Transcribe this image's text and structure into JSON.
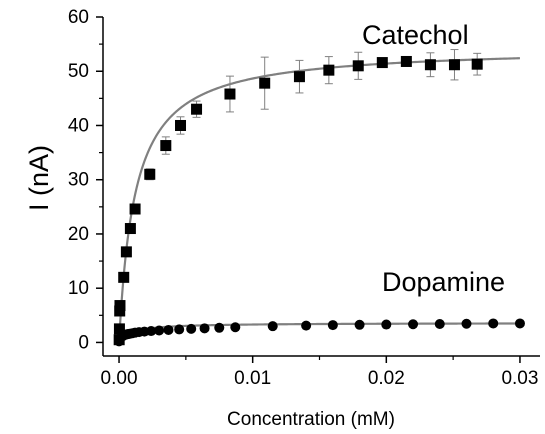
{
  "chart_data": {
    "type": "scatter",
    "xlabel": "Concentration (mM)",
    "ylabel": "I (nA)",
    "xlim": [
      -0.0012,
      0.0315
    ],
    "ylim": [
      -2.5,
      60
    ],
    "xticks": [
      "0.00",
      "0.01",
      "0.02",
      "0.03"
    ],
    "xtick_values": [
      0,
      0.01,
      0.02,
      0.03
    ],
    "yticks": [
      "0",
      "10",
      "20",
      "30",
      "40",
      "50",
      "60"
    ],
    "ytick_values": [
      0,
      10,
      20,
      30,
      40,
      50,
      60
    ],
    "grid": false,
    "legend": "none",
    "colors": {
      "points": "#000000",
      "fit": "#808080",
      "error_bar": "#808080",
      "axis": "#000000"
    },
    "series": [
      {
        "name": "Catechol",
        "marker": "square",
        "points": [
          {
            "x": 1e-05,
            "y": 0.5,
            "err": 0
          },
          {
            "x": 3e-05,
            "y": 2.5,
            "err": 0
          },
          {
            "x": 5e-05,
            "y": 5.8,
            "err": 0
          },
          {
            "x": 7e-05,
            "y": 6.8,
            "err": 0
          },
          {
            "x": 0.00035,
            "y": 12.0,
            "err": 0
          },
          {
            "x": 0.00055,
            "y": 16.7,
            "err": 0
          },
          {
            "x": 0.00085,
            "y": 21.0,
            "err": 0
          },
          {
            "x": 0.0012,
            "y": 24.6,
            "err": 0.5
          },
          {
            "x": 0.0023,
            "y": 31.0,
            "err": 1.0
          },
          {
            "x": 0.0035,
            "y": 36.3,
            "err": 1.6
          },
          {
            "x": 0.0046,
            "y": 40.0,
            "err": 1.6
          },
          {
            "x": 0.0058,
            "y": 43.0,
            "err": 1.5
          },
          {
            "x": 0.0083,
            "y": 45.8,
            "err": 3.3
          },
          {
            "x": 0.0109,
            "y": 47.8,
            "err": 4.8
          },
          {
            "x": 0.0135,
            "y": 49.0,
            "err": 3.0
          },
          {
            "x": 0.0157,
            "y": 50.2,
            "err": 2.5
          },
          {
            "x": 0.0179,
            "y": 51.0,
            "err": 2.5
          },
          {
            "x": 0.0197,
            "y": 51.6,
            "err": 0.6
          },
          {
            "x": 0.0215,
            "y": 51.8,
            "err": 0.7
          },
          {
            "x": 0.0233,
            "y": 51.2,
            "err": 2.2
          },
          {
            "x": 0.0251,
            "y": 51.2,
            "err": 2.8
          },
          {
            "x": 0.0268,
            "y": 51.3,
            "err": 2.0
          }
        ],
        "fit": {
          "model": "michaelis-menten",
          "imax": 54.5,
          "km": 0.0012
        }
      },
      {
        "name": "Dopamine",
        "marker": "circle",
        "points": [
          {
            "x": 0.0,
            "y": 0.2
          },
          {
            "x": 5e-05,
            "y": 0.5
          },
          {
            "x": 0.0001,
            "y": 0.8
          },
          {
            "x": 0.0002,
            "y": 1.1
          },
          {
            "x": 0.0003,
            "y": 1.2
          },
          {
            "x": 0.0004,
            "y": 1.35
          },
          {
            "x": 0.0005,
            "y": 1.45
          },
          {
            "x": 0.0006,
            "y": 1.5
          },
          {
            "x": 0.0007,
            "y": 1.55
          },
          {
            "x": 0.0008,
            "y": 1.6
          },
          {
            "x": 0.001,
            "y": 1.7
          },
          {
            "x": 0.0012,
            "y": 1.8
          },
          {
            "x": 0.0015,
            "y": 1.9
          },
          {
            "x": 0.0019,
            "y": 2.0
          },
          {
            "x": 0.0024,
            "y": 2.1
          },
          {
            "x": 0.003,
            "y": 2.2
          },
          {
            "x": 0.0037,
            "y": 2.3
          },
          {
            "x": 0.0045,
            "y": 2.4
          },
          {
            "x": 0.0054,
            "y": 2.5
          },
          {
            "x": 0.0064,
            "y": 2.6
          },
          {
            "x": 0.0075,
            "y": 2.7
          },
          {
            "x": 0.0087,
            "y": 2.8
          },
          {
            "x": 0.0115,
            "y": 3.0
          },
          {
            "x": 0.014,
            "y": 3.1
          },
          {
            "x": 0.016,
            "y": 3.2
          },
          {
            "x": 0.018,
            "y": 3.25
          },
          {
            "x": 0.02,
            "y": 3.3
          },
          {
            "x": 0.022,
            "y": 3.35
          },
          {
            "x": 0.024,
            "y": 3.4
          },
          {
            "x": 0.026,
            "y": 3.45
          },
          {
            "x": 0.028,
            "y": 3.5
          },
          {
            "x": 0.03,
            "y": 3.5
          }
        ],
        "fit": {
          "model": "michaelis-menten",
          "imax": 3.6,
          "km": 0.0009
        }
      }
    ]
  }
}
